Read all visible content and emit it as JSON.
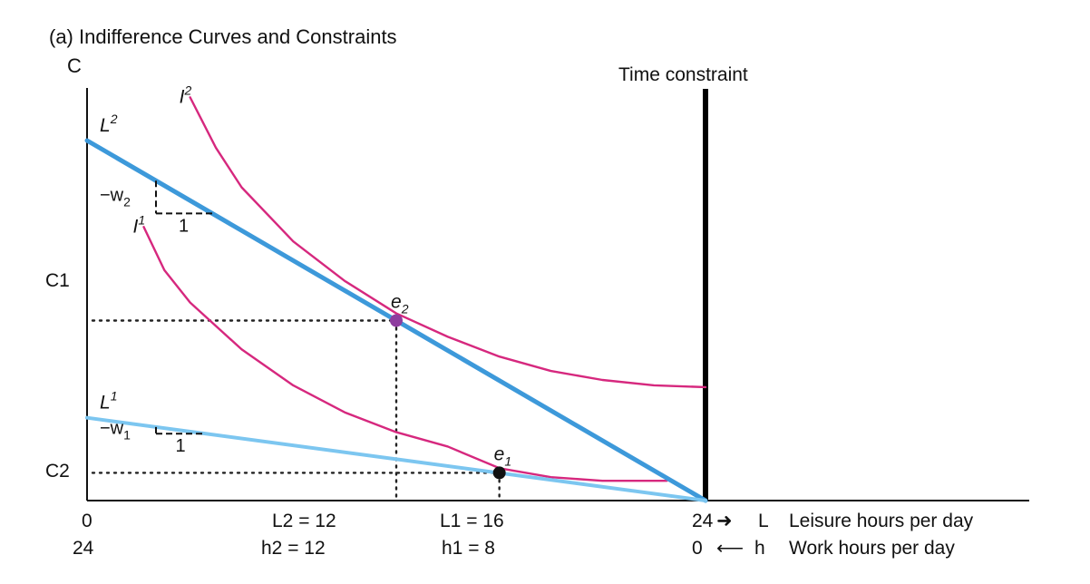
{
  "title": "(a) Indifference Curves and Constraints",
  "chart_data": {
    "type": "line",
    "title": "(a) Indifference Curves and Constraints",
    "y_axis_label": "C",
    "x_axis": {
      "range": [
        0,
        24
      ],
      "leisure_ticks": [
        "0",
        "L2 = 12",
        "L1 = 16",
        "24"
      ],
      "work_ticks": [
        "24",
        "h2 = 12",
        "h1 = 8",
        "0"
      ],
      "leisure_label": "L",
      "work_label": "h",
      "leisure_desc": "Leisure hours per day",
      "work_desc": "Work hours per day"
    },
    "y_ticks": [
      "C1",
      "C2"
    ],
    "time_constraint_label": "Time constraint",
    "budget_lines": [
      {
        "name": "L2",
        "label": "L",
        "sup": "2",
        "slope_label": "−w",
        "slope_sub": "2",
        "run_label": "1",
        "x": [
          0,
          24
        ],
        "y": [
          1.0,
          0
        ]
      },
      {
        "name": "L1",
        "label": "L",
        "sup": "1",
        "slope_label": "−w",
        "slope_sub": "1",
        "run_label": "1",
        "x": [
          0,
          24
        ],
        "y": [
          0.23,
          0
        ]
      }
    ],
    "indifference_curves": [
      {
        "name": "I2",
        "label": "I",
        "sup": "2",
        "x": [
          4,
          5,
          6,
          8,
          10,
          12,
          14,
          16,
          18,
          20,
          22,
          24
        ],
        "y": [
          1.12,
          0.98,
          0.87,
          0.72,
          0.61,
          0.52,
          0.455,
          0.4,
          0.36,
          0.335,
          0.32,
          0.315
        ]
      },
      {
        "name": "I1",
        "label": "I",
        "sup": "1",
        "x": [
          2.2,
          3,
          4,
          6,
          8,
          10,
          12,
          14,
          16,
          18,
          20,
          22.5
        ],
        "y": [
          0.76,
          0.64,
          0.55,
          0.42,
          0.32,
          0.245,
          0.19,
          0.15,
          0.09,
          0.065,
          0.055,
          0.055
        ]
      }
    ],
    "equilibria": [
      {
        "name": "e2",
        "label": "e",
        "sub": "2",
        "x": 12,
        "y": 0.5,
        "tick": "C1",
        "color": "#8e3c9e"
      },
      {
        "name": "e1",
        "label": "e",
        "sub": "1",
        "x": 16,
        "y": 0.077,
        "tick": "C2",
        "color": "#111111"
      }
    ],
    "colors": {
      "budget_L2": "#3d99da",
      "budget_L1": "#7cc6f0",
      "indifference": "#d6287e",
      "axis": "#111111",
      "time_constraint": "#000000"
    }
  }
}
